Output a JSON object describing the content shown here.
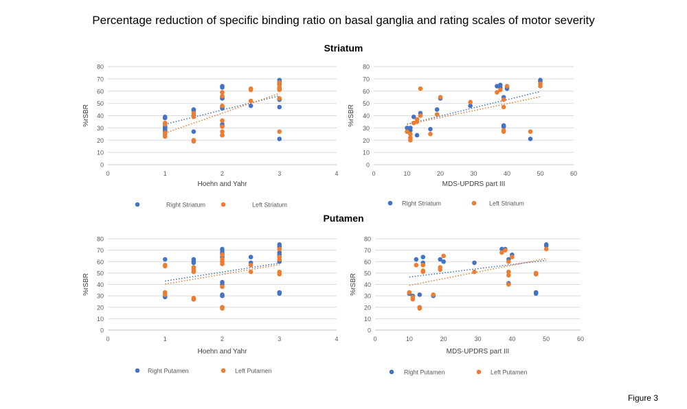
{
  "page": {
    "title": "Percentage reduction of specific binding ratio on basal ganglia and rating scales of motor severity",
    "section_striatum": "Striatum",
    "section_putamen": "Putamen",
    "figure_label": "Figure 3"
  },
  "colors": {
    "right": "#4472C4",
    "left": "#ED7D31",
    "grid": "#D9D9D9",
    "axis_text": "#595959"
  },
  "chart_data": [
    {
      "type": "scatter",
      "xlabel": "Hoehn and Yahr",
      "ylabel": "%rSBR",
      "xlim": [
        0,
        4
      ],
      "ylim": [
        0,
        80
      ],
      "xticks": [
        0,
        1,
        2,
        3,
        4
      ],
      "yticks": [
        0,
        10,
        20,
        30,
        40,
        50,
        60,
        70,
        80
      ],
      "grid": true,
      "legend": "bottom",
      "trendlines": "linear, dotted",
      "series": [
        {
          "name": "Right Striatum",
          "color": "#4472C4",
          "points": [
            [
              1,
              39
            ],
            [
              1,
              38
            ],
            [
              1,
              31
            ],
            [
              1,
              30
            ],
            [
              1,
              29
            ],
            [
              1,
              28
            ],
            [
              1,
              27
            ],
            [
              1.5,
              45
            ],
            [
              1.5,
              44
            ],
            [
              1.5,
              40
            ],
            [
              1.5,
              27
            ],
            [
              2,
              64
            ],
            [
              2,
              63
            ],
            [
              2,
              55
            ],
            [
              2,
              54
            ],
            [
              2,
              47
            ],
            [
              2,
              46
            ],
            [
              2,
              33
            ],
            [
              2,
              32
            ],
            [
              2,
              24
            ],
            [
              2.5,
              48
            ],
            [
              3,
              69
            ],
            [
              3,
              68
            ],
            [
              3,
              66
            ],
            [
              3,
              62
            ],
            [
              3,
              53
            ],
            [
              3,
              47
            ],
            [
              3,
              21
            ]
          ]
        },
        {
          "name": "Left Striatum",
          "color": "#ED7D31",
          "points": [
            [
              1,
              34
            ],
            [
              1,
              33
            ],
            [
              1,
              26
            ],
            [
              1,
              25
            ],
            [
              1,
              23
            ],
            [
              1.5,
              42
            ],
            [
              1.5,
              39
            ],
            [
              1.5,
              20
            ],
            [
              1.5,
              19
            ],
            [
              2,
              59
            ],
            [
              2,
              56
            ],
            [
              2,
              48
            ],
            [
              2,
              36
            ],
            [
              2,
              31
            ],
            [
              2,
              27
            ],
            [
              2,
              24
            ],
            [
              2.5,
              62
            ],
            [
              2.5,
              61
            ],
            [
              2.5,
              52
            ],
            [
              3,
              67
            ],
            [
              3,
              65
            ],
            [
              3,
              63
            ],
            [
              3,
              62
            ],
            [
              3,
              61
            ],
            [
              3,
              54
            ],
            [
              3,
              27
            ]
          ]
        }
      ]
    },
    {
      "type": "scatter",
      "xlabel": "MDS-UPDRS part III",
      "ylabel": "%rSBR",
      "xlim": [
        0,
        60
      ],
      "ylim": [
        0,
        80
      ],
      "xticks": [
        0,
        10,
        20,
        30,
        40,
        50,
        60
      ],
      "yticks": [
        0,
        10,
        20,
        30,
        40,
        50,
        60,
        70,
        80
      ],
      "grid": true,
      "legend": "bottom",
      "trendlines": "linear, dotted",
      "series": [
        {
          "name": "Right Striatum",
          "color": "#4472C4",
          "points": [
            [
              10,
              30
            ],
            [
              11,
              28
            ],
            [
              11,
              30
            ],
            [
              12,
              39
            ],
            [
              13,
              24
            ],
            [
              14,
              42
            ],
            [
              17,
              29
            ],
            [
              19,
              45
            ],
            [
              20,
              54
            ],
            [
              29,
              48
            ],
            [
              37,
              64
            ],
            [
              38,
              65
            ],
            [
              38,
              63
            ],
            [
              39,
              55
            ],
            [
              39,
              32
            ],
            [
              39,
              31
            ],
            [
              40,
              62
            ],
            [
              40,
              63
            ],
            [
              47,
              21
            ],
            [
              50,
              68
            ],
            [
              50,
              69
            ]
          ]
        },
        {
          "name": "Left Striatum",
          "color": "#ED7D31",
          "points": [
            [
              10,
              27
            ],
            [
              11,
              20
            ],
            [
              11,
              22
            ],
            [
              11,
              25
            ],
            [
              12,
              34
            ],
            [
              13,
              35
            ],
            [
              13,
              37
            ],
            [
              14,
              62
            ],
            [
              14,
              40
            ],
            [
              17,
              25
            ],
            [
              19,
              41
            ],
            [
              20,
              55
            ],
            [
              29,
              51
            ],
            [
              37,
              59
            ],
            [
              38,
              61
            ],
            [
              39,
              53
            ],
            [
              39,
              47
            ],
            [
              39,
              28
            ],
            [
              39,
              27
            ],
            [
              40,
              64
            ],
            [
              47,
              27
            ],
            [
              50,
              64
            ],
            [
              50,
              66
            ]
          ]
        }
      ]
    },
    {
      "type": "scatter",
      "xlabel": "Hoehn and Yahr",
      "ylabel": "%rSBR",
      "xlim": [
        0,
        4
      ],
      "ylim": [
        0,
        80
      ],
      "xticks": [
        0,
        1,
        2,
        3,
        4
      ],
      "yticks": [
        0,
        10,
        20,
        30,
        40,
        50,
        60,
        70,
        80
      ],
      "grid": true,
      "legend": "bottom",
      "trendlines": "linear, dotted",
      "series": [
        {
          "name": "Right Putamen",
          "color": "#4472C4",
          "points": [
            [
              1,
              62
            ],
            [
              1,
              31
            ],
            [
              1,
              29
            ],
            [
              1.5,
              62
            ],
            [
              1.5,
              60
            ],
            [
              1.5,
              59
            ],
            [
              1.5,
              27
            ],
            [
              2,
              71
            ],
            [
              2,
              69
            ],
            [
              2,
              67
            ],
            [
              2,
              64
            ],
            [
              2,
              42
            ],
            [
              2,
              40
            ],
            [
              2,
              31
            ],
            [
              2,
              30
            ],
            [
              2,
              20
            ],
            [
              2.5,
              64
            ],
            [
              2.5,
              59
            ],
            [
              3,
              75
            ],
            [
              3,
              73
            ],
            [
              3,
              68
            ],
            [
              3,
              66
            ],
            [
              3,
              60
            ],
            [
              3,
              33
            ],
            [
              3,
              32
            ]
          ]
        },
        {
          "name": "Left Putamen",
          "color": "#ED7D31",
          "points": [
            [
              1,
              57
            ],
            [
              1,
              56
            ],
            [
              1,
              33
            ],
            [
              1,
              31
            ],
            [
              1.5,
              55
            ],
            [
              1.5,
              53
            ],
            [
              1.5,
              51
            ],
            [
              1.5,
              28
            ],
            [
              1.5,
              27
            ],
            [
              2,
              66
            ],
            [
              2,
              62
            ],
            [
              2,
              60
            ],
            [
              2,
              58
            ],
            [
              2,
              38
            ],
            [
              2,
              20
            ],
            [
              2,
              19
            ],
            [
              2.5,
              57
            ],
            [
              2.5,
              51
            ],
            [
              3,
              71
            ],
            [
              3,
              64
            ],
            [
              3,
              62
            ],
            [
              3,
              51
            ],
            [
              3,
              49
            ]
          ]
        }
      ]
    },
    {
      "type": "scatter",
      "xlabel": "MDS-UPDRS part III",
      "ylabel": "%rSBR",
      "xlim": [
        0,
        60
      ],
      "ylim": [
        0,
        80
      ],
      "xticks": [
        0,
        10,
        20,
        30,
        40,
        50,
        60
      ],
      "yticks": [
        0,
        10,
        20,
        30,
        40,
        50,
        60,
        70,
        80
      ],
      "grid": true,
      "legend": "bottom",
      "trendlines": "linear, dotted",
      "series": [
        {
          "name": "Right Putamen",
          "color": "#4472C4",
          "points": [
            [
              10,
              32
            ],
            [
              11,
              30
            ],
            [
              12,
              62
            ],
            [
              13,
              31
            ],
            [
              14,
              64
            ],
            [
              14,
              59
            ],
            [
              17,
              30
            ],
            [
              19,
              62
            ],
            [
              20,
              60
            ],
            [
              29,
              59
            ],
            [
              37,
              71
            ],
            [
              38,
              71
            ],
            [
              39,
              62
            ],
            [
              39,
              41
            ],
            [
              40,
              66
            ],
            [
              47,
              33
            ],
            [
              47,
              32
            ],
            [
              50,
              75
            ],
            [
              50,
              74
            ]
          ]
        },
        {
          "name": "Left Putamen",
          "color": "#ED7D31",
          "points": [
            [
              10,
              33
            ],
            [
              11,
              29
            ],
            [
              11,
              27
            ],
            [
              12,
              57
            ],
            [
              13,
              20
            ],
            [
              13,
              19
            ],
            [
              14,
              57
            ],
            [
              14,
              52
            ],
            [
              14,
              51
            ],
            [
              17,
              31
            ],
            [
              19,
              55
            ],
            [
              19,
              53
            ],
            [
              20,
              65
            ],
            [
              29,
              51
            ],
            [
              37,
              68
            ],
            [
              38,
              70
            ],
            [
              39,
              60
            ],
            [
              39,
              51
            ],
            [
              39,
              48
            ],
            [
              39,
              40
            ],
            [
              40,
              64
            ],
            [
              47,
              50
            ],
            [
              47,
              49
            ],
            [
              50,
              71
            ]
          ]
        }
      ]
    }
  ]
}
